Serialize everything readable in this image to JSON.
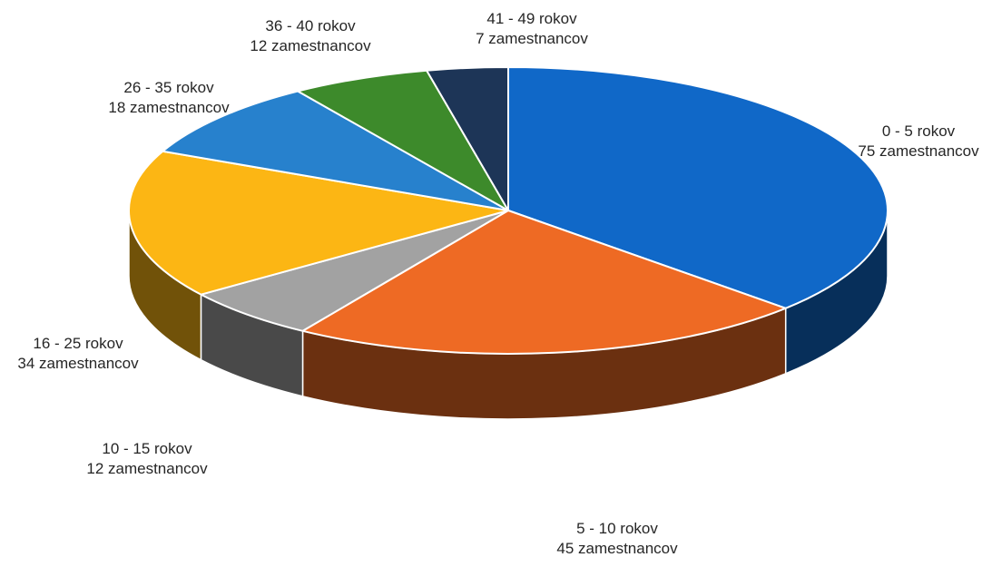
{
  "chart_data": {
    "type": "pie",
    "style": "3d",
    "title": "",
    "slices": [
      {
        "label_line1": "0 - 5 rokov",
        "label_line2": "75 zamestnancov",
        "value": 75,
        "color": "#1068c8"
      },
      {
        "label_line1": "5 - 10 rokov",
        "label_line2": "45 zamestnancov",
        "value": 45,
        "color": "#ee6a24"
      },
      {
        "label_line1": "10 - 15 rokov",
        "label_line2": "12 zamestnancov",
        "value": 12,
        "color": "#a2a2a2"
      },
      {
        "label_line1": "16 - 25 rokov",
        "label_line2": "34 zamestnancov",
        "value": 34,
        "color": "#fcb614"
      },
      {
        "label_line1": "26 - 35 rokov",
        "label_line2": "18 zamestnancov",
        "value": 18,
        "color": "#2781cd"
      },
      {
        "label_line1": "36 - 40 rokov",
        "label_line2": "12 zamestnancov",
        "value": 12,
        "color": "#3d8a2b"
      },
      {
        "label_line1": "41 - 49 rokov",
        "label_line2": "7 zamestnancov",
        "value": 7,
        "color": "#1d3557"
      }
    ]
  }
}
